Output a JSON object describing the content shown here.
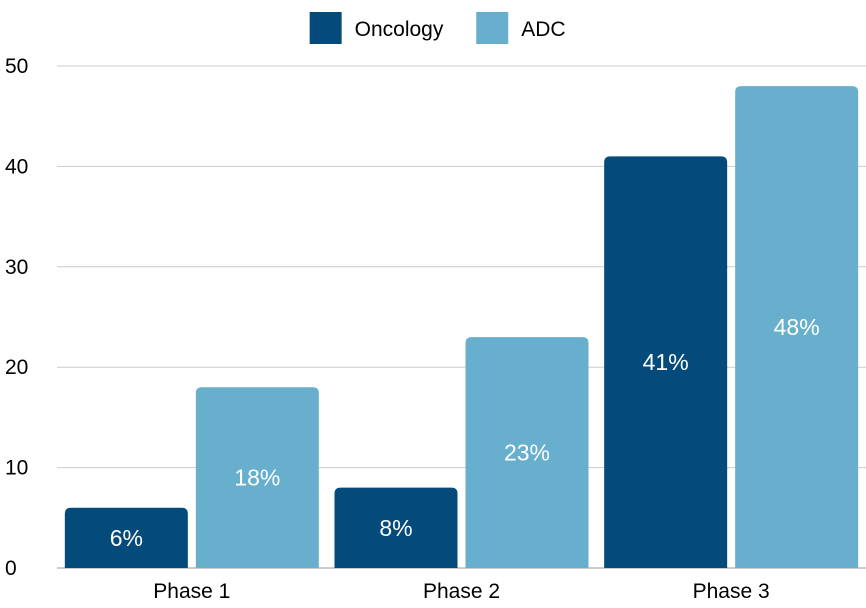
{
  "chart_data": {
    "type": "bar",
    "categories": [
      "Phase 1",
      "Phase 2",
      "Phase 3"
    ],
    "series": [
      {
        "name": "Oncology",
        "values": [
          6,
          8,
          41
        ],
        "labels": [
          "6%",
          "8%",
          "41%"
        ],
        "color": "#044a7a"
      },
      {
        "name": "ADC",
        "values": [
          18,
          23,
          48
        ],
        "labels": [
          "18%",
          "23%",
          "48%"
        ],
        "color": "#67afcc"
      }
    ],
    "ylim": [
      0,
      50
    ],
    "yticks": [
      "0",
      "10",
      "20",
      "30",
      "40",
      "50"
    ],
    "grid": true,
    "legend_position": "top-center",
    "gridline_color": "#cccccc",
    "data_label_color": "#ffffff",
    "text_color": "#000000"
  }
}
